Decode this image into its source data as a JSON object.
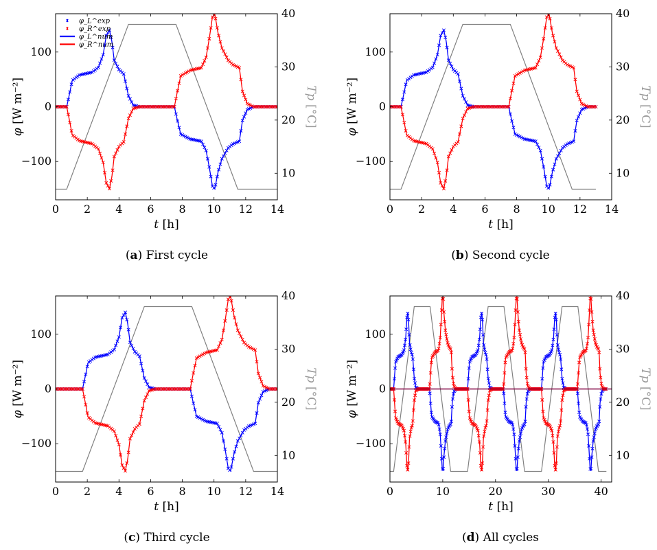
{
  "chart_data": [
    {
      "type": "line",
      "panel": "a",
      "caption_label": "a",
      "caption_text": "First cycle",
      "xlabel": "t [h]",
      "ylabel": "φ [W m⁻²]",
      "y2label": "T_p [°C]",
      "xlim": [
        0,
        14
      ],
      "ylim": [
        -170,
        170
      ],
      "y2lim": [
        5,
        40
      ],
      "xticks": [
        0,
        2,
        4,
        6,
        8,
        10,
        12,
        14
      ],
      "yticks": [
        -100,
        0,
        100
      ],
      "y2ticks": [
        10,
        20,
        30,
        40
      ],
      "legend": [
        "φ_L^exp",
        "φ_R^exp",
        "φ_L^num",
        "φ_R^num"
      ],
      "legend_position": "top-left",
      "cycle": {
        "start": 0.7,
        "T": [
          7,
          38
        ]
      },
      "total_hours": 14,
      "cycles": 1
    },
    {
      "type": "line",
      "panel": "b",
      "caption_label": "b",
      "caption_text": "Second cycle",
      "xlabel": "t [h]",
      "ylabel": "φ [W m⁻²]",
      "y2label": "T_p [°C]",
      "xlim": [
        0,
        14
      ],
      "ylim": [
        -170,
        170
      ],
      "y2lim": [
        5,
        40
      ],
      "xticks": [
        0,
        2,
        4,
        6,
        8,
        10,
        12,
        14
      ],
      "yticks": [
        -100,
        0,
        100
      ],
      "y2ticks": [
        10,
        20,
        30,
        40
      ],
      "cycle": {
        "start": 0.7,
        "T": [
          7,
          38
        ]
      },
      "total_hours": 13,
      "cycles": 1
    },
    {
      "type": "line",
      "panel": "c",
      "caption_label": "c",
      "caption_text": "Third cycle",
      "xlabel": "t [h]",
      "ylabel": "φ [W m⁻²]",
      "y2label": "T_p [°C]",
      "xlim": [
        0,
        14
      ],
      "ylim": [
        -170,
        170
      ],
      "y2lim": [
        5,
        40
      ],
      "xticks": [
        0,
        2,
        4,
        6,
        8,
        10,
        12,
        14
      ],
      "yticks": [
        -100,
        0,
        100
      ],
      "y2ticks": [
        10,
        20,
        30,
        40
      ],
      "cycle": {
        "start": 1.7,
        "T": [
          7,
          38
        ]
      },
      "total_hours": 14,
      "cycles": 1
    },
    {
      "type": "line",
      "panel": "d",
      "caption_label": "d",
      "caption_text": "All cycles",
      "xlabel": "t [h]",
      "ylabel": "φ [W m⁻²]",
      "y2label": "T_p [°C]",
      "xlim": [
        0,
        42
      ],
      "ylim": [
        -170,
        170
      ],
      "y2lim": [
        5,
        40
      ],
      "xticks": [
        0,
        10,
        20,
        30,
        40
      ],
      "yticks": [
        -100,
        0,
        100
      ],
      "y2ticks": [
        10,
        20,
        30,
        40
      ],
      "cycle": {
        "start": 0.7,
        "T": [
          7,
          38
        ]
      },
      "total_hours": 41,
      "cycles": 3,
      "cycle_period": 14
    }
  ],
  "series_shape": {
    "description_keys": [
      "t_rel_h",
      "phi_L"
    ],
    "phi_L": [
      [
        0,
        0
      ],
      [
        0.15,
        20
      ],
      [
        0.35,
        48
      ],
      [
        0.8,
        58
      ],
      [
        1.6,
        63
      ],
      [
        2.0,
        72
      ],
      [
        2.3,
        95
      ],
      [
        2.5,
        130
      ],
      [
        2.7,
        140
      ],
      [
        2.85,
        120
      ],
      [
        3.0,
        85
      ],
      [
        3.3,
        68
      ],
      [
        3.6,
        60
      ],
      [
        3.9,
        20
      ],
      [
        4.2,
        3
      ],
      [
        4.6,
        0
      ],
      [
        6.8,
        0
      ],
      [
        6.95,
        -20
      ],
      [
        7.2,
        -50
      ],
      [
        7.8,
        -59
      ],
      [
        8.5,
        -63
      ],
      [
        8.8,
        -80
      ],
      [
        9.0,
        -110
      ],
      [
        9.2,
        -145
      ],
      [
        9.35,
        -150
      ],
      [
        9.55,
        -120
      ],
      [
        9.8,
        -95
      ],
      [
        10.2,
        -75
      ],
      [
        10.5,
        -68
      ],
      [
        10.9,
        -63
      ],
      [
        11.1,
        -25
      ],
      [
        11.4,
        -5
      ],
      [
        11.8,
        0
      ],
      [
        12.3,
        0
      ]
    ],
    "T_profile": [
      [
        0,
        7
      ],
      [
        3.9,
        38
      ],
      [
        6.9,
        38
      ],
      [
        10.8,
        7
      ],
      [
        12.3,
        7
      ]
    ]
  },
  "colors": {
    "phi_L": "#0000ff",
    "phi_R": "#ff0000",
    "T_p": "#808080",
    "phi_combined": "#800040"
  }
}
